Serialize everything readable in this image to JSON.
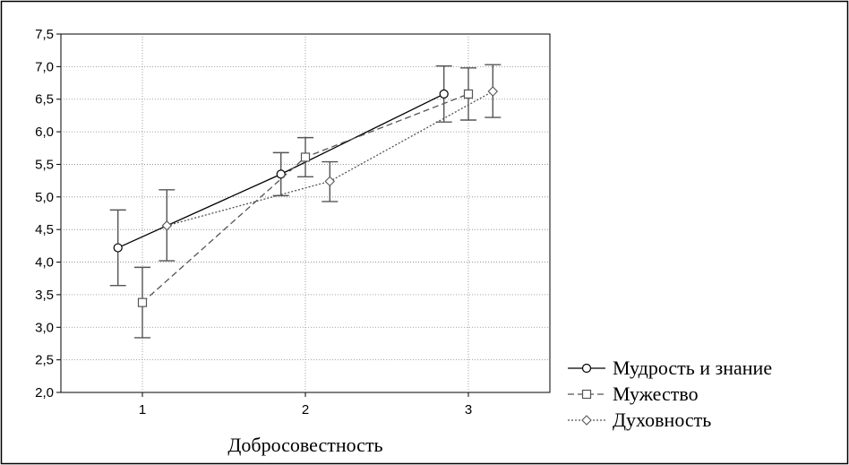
{
  "chart_data": {
    "type": "line",
    "xlabel": "Добросовестность",
    "ylabel": "",
    "x_ticks": [
      "1",
      "2",
      "3"
    ],
    "ylim": [
      2.0,
      7.5
    ],
    "y_ticks": [
      "2,0",
      "2,5",
      "3,0",
      "3,5",
      "4,0",
      "4,5",
      "5,0",
      "5,5",
      "6,0",
      "6,5",
      "7,0",
      "7,5"
    ],
    "grid": true,
    "legend_position": "bottom-right",
    "series": [
      {
        "name": "Мудрость и знание",
        "marker": "circle",
        "line_style": "solid",
        "x": [
          0.85,
          1.85,
          2.85
        ],
        "values": [
          4.22,
          5.35,
          6.58
        ],
        "error_low": [
          3.64,
          5.02,
          6.15
        ],
        "error_high": [
          4.8,
          5.68,
          7.01
        ]
      },
      {
        "name": "Мужество",
        "marker": "square",
        "line_style": "dashed",
        "x": [
          1.0,
          2.0,
          3.0
        ],
        "values": [
          3.38,
          5.61,
          6.58
        ],
        "error_low": [
          2.84,
          5.31,
          6.18
        ],
        "error_high": [
          3.92,
          5.91,
          6.98
        ]
      },
      {
        "name": "Духовность",
        "marker": "diamond",
        "line_style": "dotted",
        "x": [
          1.15,
          2.15,
          3.15
        ],
        "values": [
          4.56,
          5.24,
          6.62
        ],
        "error_low": [
          4.02,
          4.93,
          6.22
        ],
        "error_high": [
          5.11,
          5.54,
          7.03
        ]
      }
    ]
  }
}
